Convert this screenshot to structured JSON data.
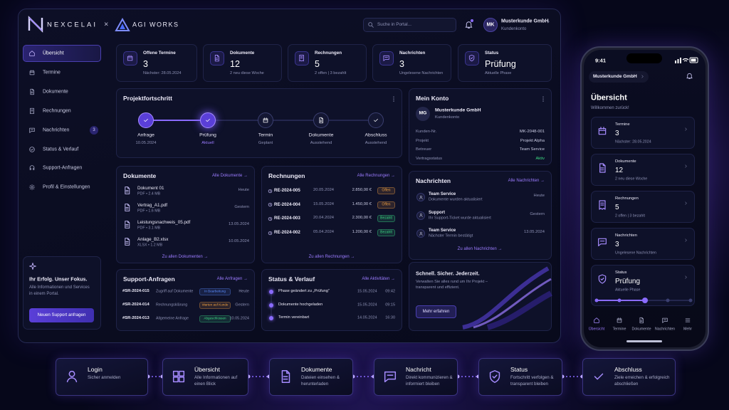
{
  "header": {
    "brand": "NEXCELAI",
    "separator": "×",
    "partner": "AGI WORKS",
    "search": "Suche in Portal...",
    "user": {
      "initials": "MK",
      "name": "Musterkunde GmbH",
      "role": "Kundenkonto"
    }
  },
  "sidebar": {
    "items": [
      {
        "label": "Übersicht"
      },
      {
        "label": "Termine"
      },
      {
        "label": "Dokumente"
      },
      {
        "label": "Rechnungen"
      },
      {
        "label": "Nachrichten",
        "badge": 3
      },
      {
        "label": "Status & Verlauf"
      },
      {
        "label": "Support-Anfragen"
      },
      {
        "label": "Profil & Einstellungen"
      }
    ],
    "promo": {
      "title": "Ihr Erfolg. Unser Fokus.",
      "text": "Alle Informationen und Services in einem Portal.",
      "button": "Neuen Support anfragen"
    }
  },
  "stats": [
    {
      "label": "Offene Termine",
      "value": 3,
      "sub": "Nächster: 28.05.2024"
    },
    {
      "label": "Dokumente",
      "value": 12,
      "sub": "2 neu diese Woche"
    },
    {
      "label": "Rechnungen",
      "value": 5,
      "sub": "2 offen  |  3 bezahlt"
    },
    {
      "label": "Nachrichten",
      "value": 3,
      "sub": "Ungelesene Nachrichten"
    },
    {
      "label": "Status",
      "value": "Prüfung",
      "sub": "Aktuelle Phase"
    }
  ],
  "progress": {
    "title": "Projektfortschritt",
    "steps": [
      {
        "label": "Anfrage",
        "note": "10.05.2024"
      },
      {
        "label": "Prüfung",
        "note": "Aktuell"
      },
      {
        "label": "Termin",
        "note": "Geplant"
      },
      {
        "label": "Dokumente",
        "note": "Ausstehend"
      },
      {
        "label": "Abschluss",
        "note": "Ausstehend"
      }
    ]
  },
  "account": {
    "title": "Mein Konto",
    "initials": "MG",
    "name": "Musterkunde GmbH",
    "role": "Kundenkonto",
    "rows": [
      {
        "key": "Kunden-Nr.",
        "value": "MK-2048-001"
      },
      {
        "key": "Projekt",
        "value": "Projekt Alpha"
      },
      {
        "key": "Betreuer",
        "value": "Team Service"
      },
      {
        "key": "Vertragsstatus",
        "value": "Aktiv",
        "color": "#3ddc84"
      }
    ]
  },
  "documents": {
    "title": "Dokumente",
    "link": "Alle Dokumente →",
    "footer": "Zu allen Dokumenten →",
    "items": [
      {
        "name": "Dokument 01",
        "meta": "PDF • 2.4 MB",
        "date": "Heute"
      },
      {
        "name": "Vertrag_A1.pdf",
        "meta": "PDF • 1.6 MB",
        "date": "Gestern"
      },
      {
        "name": "Leistungsnachweis_05.pdf",
        "meta": "PDF • 3.1 MB",
        "date": "13.05.2024"
      },
      {
        "name": "Anlage_B2.xlsx",
        "meta": "XLSX • 1.2 MB",
        "date": "10.05.2024"
      }
    ]
  },
  "invoices": {
    "title": "Rechnungen",
    "link": "Alle Rechnungen →",
    "footer": "Zu allen Rechnungen →",
    "items": [
      {
        "id": "RE-2024-005",
        "date": "20.05.2024",
        "amount": "2.850,00 €",
        "status": "Offen",
        "color": "#f0a040"
      },
      {
        "id": "RE-2024-004",
        "date": "15.05.2024",
        "amount": "1.450,00 €",
        "status": "Offen",
        "color": "#f0a040"
      },
      {
        "id": "RE-2024-003",
        "date": "20.04.2024",
        "amount": "2.300,00 €",
        "status": "Bezahlt",
        "color": "#3ddc84"
      },
      {
        "id": "RE-2024-002",
        "date": "05.04.2024",
        "amount": "1.200,00 €",
        "status": "Bezahlt",
        "color": "#3ddc84"
      }
    ]
  },
  "messages": {
    "title": "Nachrichten",
    "link": "Alle Nachrichten →",
    "footer": "Zu allen Nachrichten →",
    "items": [
      {
        "from": "Team Service",
        "text": "Dokumente wurden aktualisiert",
        "date": "Heute"
      },
      {
        "from": "Support",
        "text": "Ihr Support-Ticket wurde aktualisiert",
        "date": "Gestern"
      },
      {
        "from": "Team Service",
        "text": "Nächster Termin bestätigt",
        "date": "13.05.2024"
      }
    ]
  },
  "support": {
    "title": "Support-Anfragen",
    "link": "Alle Anfragen →",
    "items": [
      {
        "id": "#SR-2024-015",
        "subject": "Zugriff auf Dokumente",
        "status": "In Bearbeitung",
        "color": "#5b8cff",
        "date": "Heute"
      },
      {
        "id": "#SR-2024-014",
        "subject": "Rechnungsklärung",
        "status": "Warten auf Kunde",
        "color": "#f0a040",
        "date": "Gestern"
      },
      {
        "id": "#SR-2024-013",
        "subject": "Allgemeine Anfrage",
        "status": "Abgeschlossen",
        "color": "#3ddc84",
        "date": "10.05.2024"
      }
    ]
  },
  "history": {
    "title": "Status & Verlauf",
    "link": "Alle Aktivitäten →",
    "items": [
      {
        "text": "Phase geändert zu „Prüfung“",
        "date": "15.05.2024",
        "time": "09:42"
      },
      {
        "text": "Dokumente hochgeladen",
        "date": "15.05.2024",
        "time": "09:15"
      },
      {
        "text": "Termin vereinbart",
        "date": "14.05.2024",
        "time": "16:30"
      }
    ]
  },
  "promo": {
    "title": "Schnell. Sicher. Jederzeit.",
    "text": "Verwalten Sie alles rund um Ihr Projekt – transparent und effizient.",
    "button": "Mehr erfahren"
  },
  "phone": {
    "time": "9:41",
    "account": "Musterkunde GmbH",
    "title": "Übersicht",
    "subtitle": "Willkommen zurück!",
    "cards": [
      {
        "label": "Termine",
        "value": 3,
        "sub": "Nächster: 28.05.2024"
      },
      {
        "label": "Dokumente",
        "value": 12,
        "sub": "2 neu diese Woche"
      },
      {
        "label": "Rechnungen",
        "value": 5,
        "sub": "2 offen  |  3 bezahlt"
      },
      {
        "label": "Nachrichten",
        "value": 3,
        "sub": "Ungelesene Nachrichten"
      },
      {
        "label": "Status",
        "value": "Prüfung",
        "sub": "Aktuelle Phase"
      }
    ],
    "nav": [
      "Übersicht",
      "Termine",
      "Dokumente",
      "Nachrichten",
      "Mehr"
    ]
  },
  "flow": [
    {
      "title": "Login",
      "text": "Sicher anmelden"
    },
    {
      "title": "Übersicht",
      "text": "Alle Informationen auf einen Blick"
    },
    {
      "title": "Dokumente",
      "text": "Dateien einsehen & herunterladen"
    },
    {
      "title": "Nachricht",
      "text": "Direkt kommunizieren & informiert bleiben"
    },
    {
      "title": "Status",
      "text": "Fortschritt verfolgen & transparent bleiben"
    },
    {
      "title": "Abschluss",
      "text": "Ziele erreichen & erfolgreich abschließen"
    }
  ]
}
